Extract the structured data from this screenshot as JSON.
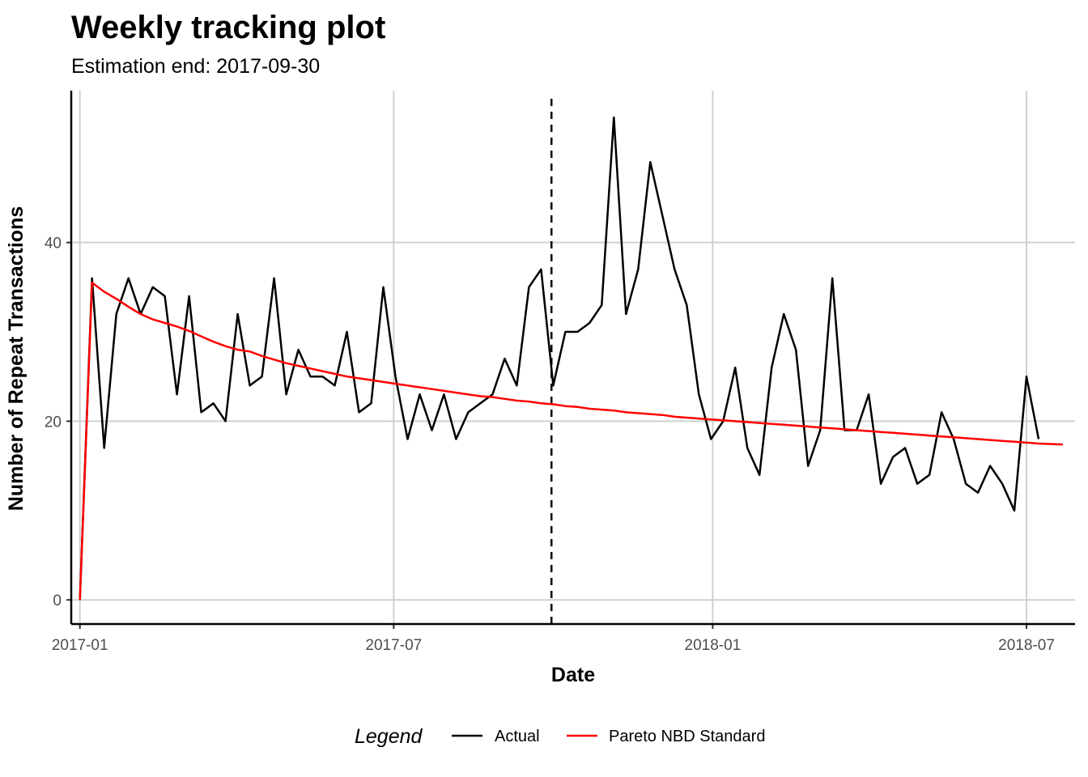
{
  "chart_data": {
    "type": "line",
    "title": "Weekly tracking plot",
    "subtitle": "Estimation end: 2017-09-30",
    "xlabel": "Date",
    "ylabel": "Number of Repeat Transactions",
    "x_type": "date",
    "xlim": [
      "2016-12-27",
      "2018-07-29"
    ],
    "ylim": [
      -2.7,
      57
    ],
    "x_ticks": [
      {
        "date": "2017-01-01",
        "label": "2017-01"
      },
      {
        "date": "2017-07-01",
        "label": "2017-07"
      },
      {
        "date": "2018-01-01",
        "label": "2018-01"
      },
      {
        "date": "2018-07-01",
        "label": "2018-07"
      }
    ],
    "y_ticks": [
      0,
      20,
      40
    ],
    "grid": true,
    "estimation_end": "2017-09-30",
    "legend": {
      "title": "Legend",
      "position": "bottom",
      "entries": [
        "Actual",
        "Pareto NBD Standard"
      ]
    },
    "series": [
      {
        "name": "Actual",
        "color": "#000000",
        "start_date": "2017-01-01",
        "step_days": 7,
        "values": [
          0,
          36,
          17,
          32,
          36,
          32,
          35,
          34,
          23,
          34,
          21,
          22,
          20,
          32,
          24,
          25,
          36,
          23,
          28,
          25,
          25,
          24,
          30,
          21,
          22,
          35,
          25,
          18,
          23,
          19,
          23,
          18,
          21,
          22,
          23,
          27,
          24,
          35,
          37,
          24,
          30,
          30,
          31,
          33,
          54,
          32,
          37,
          49,
          43,
          37,
          33,
          23,
          18,
          20,
          26,
          17,
          14,
          26,
          32,
          28,
          15,
          19,
          36,
          19,
          19,
          23,
          13,
          16,
          17,
          13,
          14,
          21,
          18,
          13,
          12,
          15,
          13,
          10,
          25,
          18
        ]
      },
      {
        "name": "Pareto NBD Standard",
        "color": "#ff0000",
        "start_date": "2017-01-01",
        "step_days": 7,
        "values": [
          0,
          35.5,
          34.5,
          33.7,
          32.8,
          32.0,
          31.4,
          31.0,
          30.6,
          30.1,
          29.5,
          28.9,
          28.4,
          28.0,
          27.8,
          27.3,
          26.9,
          26.5,
          26.2,
          25.9,
          25.6,
          25.3,
          25.0,
          24.8,
          24.6,
          24.4,
          24.2,
          24.0,
          23.8,
          23.6,
          23.4,
          23.2,
          23.0,
          22.8,
          22.7,
          22.5,
          22.3,
          22.2,
          22.0,
          21.9,
          21.7,
          21.6,
          21.4,
          21.3,
          21.2,
          21.0,
          20.9,
          20.8,
          20.7,
          20.5,
          20.4,
          20.3,
          20.2,
          20.1,
          20.0,
          19.9,
          19.8,
          19.7,
          19.6,
          19.5,
          19.4,
          19.3,
          19.2,
          19.1,
          19.0,
          18.9,
          18.8,
          18.7,
          18.6,
          18.5,
          18.4,
          18.3,
          18.2,
          18.1,
          18.0,
          17.9,
          17.8,
          17.7,
          17.6,
          17.5,
          17.45,
          17.4
        ]
      }
    ]
  }
}
